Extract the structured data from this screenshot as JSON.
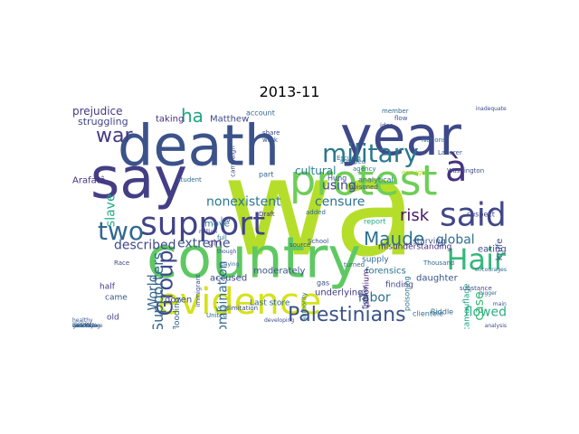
{
  "figure": {
    "title": "2013-11"
  },
  "words": [
    {
      "text": "wa",
      "color": "#b5de2b"
    },
    {
      "text": "death",
      "color": "#3b528b"
    },
    {
      "text": "year",
      "color": "#3e4989"
    },
    {
      "text": "say",
      "color": "#433e85"
    },
    {
      "text": "country",
      "color": "#5ec962"
    },
    {
      "text": "protest",
      "color": "#6ece58"
    },
    {
      "text": "evidence",
      "color": "#d5e21a"
    },
    {
      "text": "support",
      "color": "#414487"
    },
    {
      "text": "military",
      "color": "#2a788e"
    },
    {
      "text": "said",
      "color": "#404688"
    },
    {
      "text": "Hair",
      "color": "#35b779"
    },
    {
      "text": "à",
      "color": "#46327e"
    },
    {
      "text": "two",
      "color": "#31688e"
    },
    {
      "text": "Group",
      "color": "#3e4a89"
    },
    {
      "text": "Palestinians",
      "color": "#3b528b"
    },
    {
      "text": "Maude",
      "color": "#2c728e"
    },
    {
      "text": "war",
      "color": "#443a83"
    },
    {
      "text": "ha",
      "color": "#20a486"
    },
    {
      "text": "risk",
      "color": "#48186a"
    },
    {
      "text": "global",
      "color": "#2d708e"
    },
    {
      "text": "Supporters",
      "color": "#31688e"
    },
    {
      "text": "extreme",
      "color": "#3b528b"
    },
    {
      "text": "World",
      "color": "#33638d"
    },
    {
      "text": "combination",
      "color": "#31688e"
    },
    {
      "text": "described",
      "color": "#3e4989"
    },
    {
      "text": "slave",
      "color": "#22a884"
    },
    {
      "text": "nonexistent",
      "color": "#2a788e"
    },
    {
      "text": "censure",
      "color": "#2c728e"
    },
    {
      "text": "using",
      "color": "#404688"
    },
    {
      "text": "cultural",
      "color": "#277f8e"
    },
    {
      "text": "prejudice",
      "color": "#453781"
    },
    {
      "text": "struggling",
      "color": "#414487"
    },
    {
      "text": "Matthew",
      "color": "#3e4a89"
    },
    {
      "text": "taking",
      "color": "#46327e"
    },
    {
      "text": "account",
      "color": "#31688e"
    },
    {
      "text": "flowed",
      "color": "#2ab07f"
    },
    {
      "text": "labor",
      "color": "#2c728e"
    },
    {
      "text": "case",
      "color": "#38b977"
    },
    {
      "text": "ethnic",
      "color": "#1fa088"
    },
    {
      "text": "disorder",
      "color": "#31688e"
    },
    {
      "text": "knife",
      "color": "#3b528b"
    },
    {
      "text": "eating",
      "color": "#3e4989"
    },
    {
      "text": "misunderstanding",
      "color": "#472d7b"
    },
    {
      "text": "forensics",
      "color": "#2c728e"
    },
    {
      "text": "daughter",
      "color": "#3b528b"
    },
    {
      "text": "accused",
      "color": "#3e4989"
    },
    {
      "text": "underlying",
      "color": "#443a83"
    },
    {
      "text": "polonium",
      "color": "#481f70"
    },
    {
      "text": "finding",
      "color": "#414487"
    },
    {
      "text": "moderately",
      "color": "#3b528b"
    },
    {
      "text": "Last store",
      "color": "#31688e"
    },
    {
      "text": "dozen",
      "color": "#3e4989"
    },
    {
      "text": "flooding",
      "color": "#35608d"
    },
    {
      "text": "old",
      "color": "#414487"
    },
    {
      "text": "came",
      "color": "#3b528b"
    },
    {
      "text": "half",
      "color": "#443a83"
    },
    {
      "text": "move",
      "color": "#2c728e"
    },
    {
      "text": "girl",
      "color": "#46327e"
    },
    {
      "text": "starving",
      "color": "#3b528b"
    },
    {
      "text": "supply",
      "color": "#31688e"
    },
    {
      "text": "camouflage",
      "color": "#20a486"
    },
    {
      "text": "proposition",
      "color": "#3e4989"
    },
    {
      "text": "couple",
      "color": "#31688e"
    },
    {
      "text": "Arafatâ",
      "color": "#46327e"
    },
    {
      "text": "analytical",
      "color": "#2c728e"
    },
    {
      "text": "clientele",
      "color": "#2c728e"
    },
    {
      "text": "poisoning",
      "color": "#2c728e"
    },
    {
      "text": "fighter",
      "color": "#3e4989"
    },
    {
      "text": "gas",
      "color": "#3b528b"
    },
    {
      "text": "Riddle",
      "color": "#31688e"
    },
    {
      "text": "suspect",
      "color": "#3e4989"
    },
    {
      "text": "report",
      "color": "#22a884"
    },
    {
      "text": "Hung",
      "color": "#3b528b"
    },
    {
      "text": "part",
      "color": "#31688e"
    },
    {
      "text": "Race",
      "color": "#3e4989"
    },
    {
      "text": "immigrant",
      "color": "#3b528b"
    },
    {
      "text": "Draft",
      "color": "#46327e"
    },
    {
      "text": "authority",
      "color": "#2c728e"
    },
    {
      "text": "turned",
      "color": "#31688e"
    },
    {
      "text": "substance",
      "color": "#3e4989"
    },
    {
      "text": "private",
      "color": "#31688e"
    },
    {
      "text": "limitation",
      "color": "#3e4989"
    },
    {
      "text": "vest",
      "color": "#2c728e"
    },
    {
      "text": "United",
      "color": "#31688e"
    },
    {
      "text": "School",
      "color": "#3b528b"
    },
    {
      "text": "source",
      "color": "#3e4989"
    },
    {
      "text": "added",
      "color": "#31688e"
    },
    {
      "text": "led",
      "color": "#3b528b"
    },
    {
      "text": "full",
      "color": "#2c728e"
    },
    {
      "text": "student",
      "color": "#31688e"
    },
    {
      "text": "campaign",
      "color": "#3e4989"
    },
    {
      "text": "work",
      "color": "#3b528b"
    },
    {
      "text": "stopped",
      "color": "#31688e"
    },
    {
      "text": "agency",
      "color": "#2c728e"
    },
    {
      "text": "enough",
      "color": "#b5de2b"
    },
    {
      "text": "Thousand",
      "color": "#31688e"
    },
    {
      "text": "Washington",
      "color": "#3e4989"
    },
    {
      "text": "Laborer",
      "color": "#3b528b"
    },
    {
      "text": "Nations",
      "color": "#31688e"
    },
    {
      "text": "idea",
      "color": "#3e4989"
    },
    {
      "text": "flow",
      "color": "#3b528b"
    },
    {
      "text": "member",
      "color": "#31688e"
    },
    {
      "text": "share",
      "color": "#3e4989"
    },
    {
      "text": "Escuela",
      "color": "#2c728e"
    },
    {
      "text": "poisoned",
      "color": "#3b528b"
    },
    {
      "text": "bigger",
      "color": "#31688e"
    },
    {
      "text": "analysis",
      "color": "#3e4989"
    },
    {
      "text": "main",
      "color": "#3b528b"
    },
    {
      "text": "money",
      "color": "#31688e"
    },
    {
      "text": "conceding",
      "color": "#3e4989"
    },
    {
      "text": "genocide",
      "color": "#3b528b"
    },
    {
      "text": "radioactive",
      "color": "#31688e"
    },
    {
      "text": "million",
      "color": "#3e4989"
    },
    {
      "text": "though",
      "color": "#3b528b"
    },
    {
      "text": "paying",
      "color": "#31688e"
    },
    {
      "text": "developing",
      "color": "#3e4989"
    },
    {
      "text": "healthy",
      "color": "#3b528b"
    },
    {
      "text": "encourages",
      "color": "#31688e"
    },
    {
      "text": "inadequate",
      "color": "#3e4989"
    },
    {
      "text": "wealthy",
      "color": "#31688e"
    }
  ]
}
